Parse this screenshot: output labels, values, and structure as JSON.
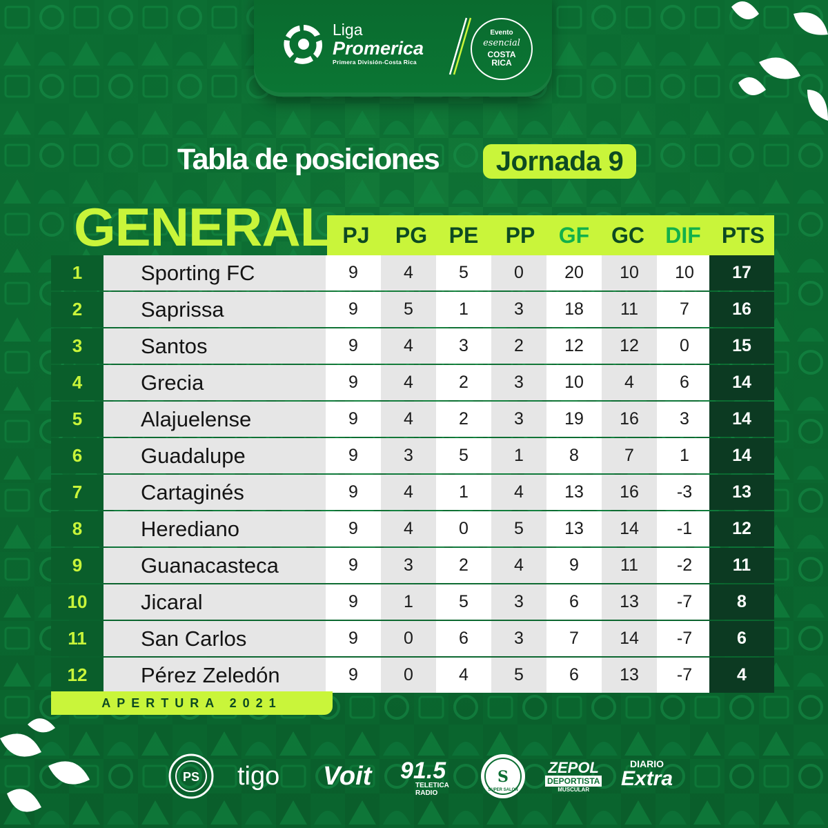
{
  "header": {
    "brand_small": "Liga",
    "brand_big": "Promerica",
    "brand_sub": "Primera División-Costa Rica",
    "evento_line1": "Evento",
    "evento_line2": "esencial",
    "evento_line3a": "COSTA",
    "evento_line3b": "RICA"
  },
  "title": "Tabla de posiciones",
  "jornada": "Jornada 9",
  "general": "GENERAL",
  "columns": [
    "PJ",
    "PG",
    "PE",
    "PP",
    "GF",
    "GC",
    "DIF",
    "PTS"
  ],
  "rows": [
    {
      "pos": "1",
      "team": "Sporting FC",
      "pj": "9",
      "pg": "4",
      "pe": "5",
      "pp": "0",
      "gf": "20",
      "gc": "10",
      "dif": "10",
      "pts": "17"
    },
    {
      "pos": "2",
      "team": "Saprissa",
      "pj": "9",
      "pg": "5",
      "pe": "1",
      "pp": "3",
      "gf": "18",
      "gc": "11",
      "dif": "7",
      "pts": "16"
    },
    {
      "pos": "3",
      "team": "Santos",
      "pj": "9",
      "pg": "4",
      "pe": "3",
      "pp": "2",
      "gf": "12",
      "gc": "12",
      "dif": "0",
      "pts": "15"
    },
    {
      "pos": "4",
      "team": "Grecia",
      "pj": "9",
      "pg": "4",
      "pe": "2",
      "pp": "3",
      "gf": "10",
      "gc": "4",
      "dif": "6",
      "pts": "14"
    },
    {
      "pos": "5",
      "team": "Alajuelense",
      "pj": "9",
      "pg": "4",
      "pe": "2",
      "pp": "3",
      "gf": "19",
      "gc": "16",
      "dif": "3",
      "pts": "14"
    },
    {
      "pos": "6",
      "team": "Guadalupe",
      "pj": "9",
      "pg": "3",
      "pe": "5",
      "pp": "1",
      "gf": "8",
      "gc": "7",
      "dif": "1",
      "pts": "14"
    },
    {
      "pos": "7",
      "team": "Cartaginés",
      "pj": "9",
      "pg": "4",
      "pe": "1",
      "pp": "4",
      "gf": "13",
      "gc": "16",
      "dif": "-3",
      "pts": "13"
    },
    {
      "pos": "8",
      "team": "Herediano",
      "pj": "9",
      "pg": "4",
      "pe": "0",
      "pp": "5",
      "gf": "13",
      "gc": "14",
      "dif": "-1",
      "pts": "12"
    },
    {
      "pos": "9",
      "team": "Guanacasteca",
      "pj": "9",
      "pg": "3",
      "pe": "2",
      "pp": "4",
      "gf": "9",
      "gc": "11",
      "dif": "-2",
      "pts": "11"
    },
    {
      "pos": "10",
      "team": "Jicaral",
      "pj": "9",
      "pg": "1",
      "pe": "5",
      "pp": "3",
      "gf": "6",
      "gc": "13",
      "dif": "-7",
      "pts": "8"
    },
    {
      "pos": "11",
      "team": "San Carlos",
      "pj": "9",
      "pg": "0",
      "pe": "6",
      "pp": "3",
      "gf": "7",
      "gc": "14",
      "dif": "-7",
      "pts": "6"
    },
    {
      "pos": "12",
      "team": "Pérez Zeledón",
      "pj": "9",
      "pg": "0",
      "pe": "4",
      "pp": "5",
      "gf": "6",
      "gc": "13",
      "dif": "-7",
      "pts": "4"
    }
  ],
  "apertura": "APERTURA 2021",
  "sponsors": {
    "tigo": "tigo",
    "voit": "Voit",
    "radio_num": "91.5",
    "radio_line1": "TELETICA",
    "radio_line2": "RADIO",
    "zepol_line1": "ZEPOL",
    "zepol_line2": "DEPORTISTA",
    "zepol_line3": "MUSCULAR",
    "diario_line1": "DIARIO",
    "diario_line2": "Extra",
    "super_salon": "SUPER SALON"
  },
  "colors": {
    "accent": "#c9f53a",
    "green": "#0c6e33",
    "dark": "#0c3a22"
  }
}
